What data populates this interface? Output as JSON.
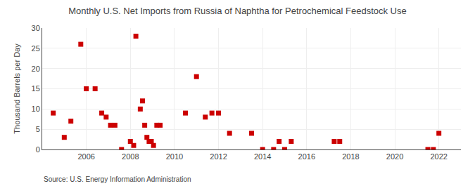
{
  "chart_data": {
    "type": "scatter",
    "title": "Monthly U.S. Net Imports from Russia of Naphtha for Petrochemical Feedstock Use",
    "ylabel": "Thousand Barrels per Day",
    "annotations": [
      "Source: U.S. Energy Information Administration"
    ],
    "color": "#cc0000",
    "marker": "square",
    "grid": true,
    "xlim": [
      2004.0,
      2023.0
    ],
    "xticks": [
      2006,
      2008,
      2010,
      2012,
      2014,
      2016,
      2018,
      2020,
      2022
    ],
    "ylim": [
      0,
      30
    ],
    "yticks": [
      0,
      5,
      10,
      15,
      20,
      25,
      30
    ],
    "x": [
      2004.5,
      2005.0,
      2005.3,
      2005.75,
      2006.0,
      2006.4,
      2006.7,
      2006.9,
      2007.1,
      2007.3,
      2007.6,
      2008.0,
      2008.15,
      2008.25,
      2008.45,
      2008.55,
      2008.65,
      2008.75,
      2008.85,
      2008.95,
      2009.05,
      2009.2,
      2009.35,
      2010.5,
      2011.0,
      2011.4,
      2011.7,
      2012.0,
      2012.5,
      2013.5,
      2014.0,
      2014.5,
      2014.75,
      2015.0,
      2015.3,
      2017.25,
      2017.5,
      2021.5,
      2021.75,
      2022.0
    ],
    "values": [
      9,
      3,
      7,
      26,
      15,
      15,
      9,
      8,
      6,
      6,
      0,
      2,
      1,
      28,
      10,
      12,
      6,
      3,
      2,
      2,
      1,
      6,
      6,
      9,
      18,
      8,
      9,
      9,
      4,
      4,
      0,
      0,
      2,
      0,
      2,
      2,
      2,
      0,
      0,
      4
    ]
  }
}
